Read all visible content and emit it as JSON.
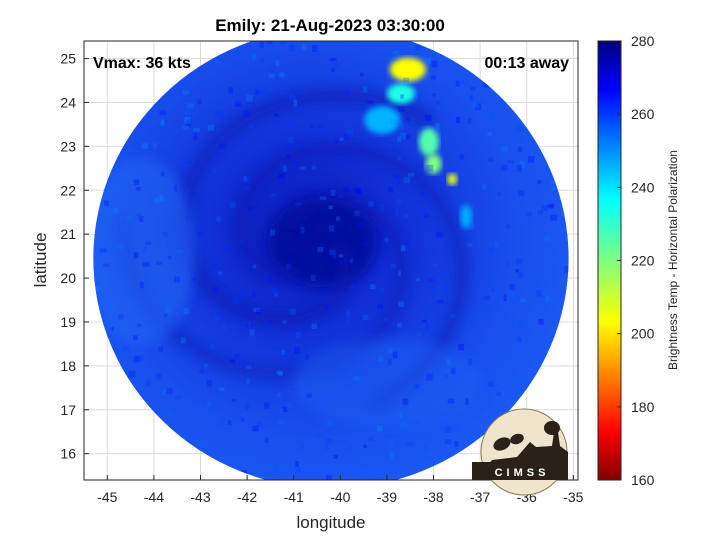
{
  "chart_data": {
    "type": "heatmap",
    "title": "Emily: 21-Aug-2023 03:30:00",
    "xlabel": "longitude",
    "ylabel": "latitude",
    "xlim": [
      -45.5,
      -34.9
    ],
    "ylim": [
      15.4,
      25.4
    ],
    "xticks": [
      -45,
      -44,
      -43,
      -42,
      -41,
      -40,
      -39,
      -38,
      -37,
      -36,
      -35
    ],
    "yticks": [
      16,
      17,
      18,
      19,
      20,
      21,
      22,
      23,
      24,
      25
    ],
    "grid": true,
    "annotations": {
      "vmax": "Vmax: 36 kts",
      "time_away": "00:13 away"
    },
    "colorbar": {
      "label": "Brightness Temp - Horizontal Polarization",
      "range": [
        160,
        280
      ],
      "ticks": [
        160,
        180,
        200,
        220,
        240,
        260,
        280
      ],
      "colormap": "jet"
    },
    "storm_center": {
      "lon": -40.7,
      "lat": 20.7
    },
    "swath": {
      "center_lon": -40.2,
      "center_lat": 20.45,
      "radius_lon": 5.1,
      "radius_lat": 5.25
    },
    "cold_features": [
      {
        "lon": -38.6,
        "lat": 24.8,
        "min_value": 203
      },
      {
        "lon": -38.0,
        "lat": 22.5,
        "min_value": 218
      },
      {
        "lon": -37.6,
        "lat": 22.25,
        "min_value": 207
      }
    ]
  },
  "logo": {
    "text": "CIMSS"
  }
}
